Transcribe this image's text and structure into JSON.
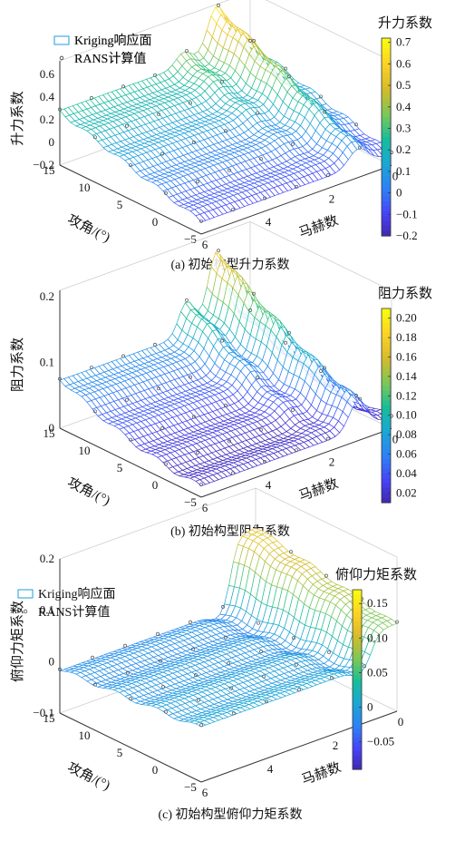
{
  "legend": {
    "surface": "Kriging响应面",
    "points": "RANS计算值"
  },
  "axis_labels": {
    "x": "马赫数",
    "y": "攻角/(°)"
  },
  "colormap": [
    "#3e26a8",
    "#4743f8",
    "#2d80f5",
    "#1aa6d6",
    "#17bd9b",
    "#7ac857",
    "#d4bb2b",
    "#fbd126",
    "#f9fb0e"
  ],
  "chart_data": [
    {
      "type": "surface",
      "title": "(a) 初始构型升力系数",
      "zlabel": "升力系数",
      "colorbar_title": "升力系数",
      "x_ticks": [
        "6",
        "4",
        "2",
        "0"
      ],
      "y_ticks": [
        "15",
        "10",
        "5",
        "0",
        "−5"
      ],
      "z_ticks": [
        "0.6",
        "0.4",
        "0.2",
        "0",
        "−0.2"
      ],
      "colorbar_ticks": [
        "0.7",
        "0.6",
        "0.5",
        "0.4",
        "0.3",
        "0.2",
        "0.1",
        "0",
        "−0.1",
        "−0.2"
      ],
      "xlim": [
        0,
        6
      ],
      "ylim": [
        -5,
        15
      ],
      "zlim": [
        -0.2,
        0.72
      ],
      "clim": [
        -0.2,
        0.72
      ]
    },
    {
      "type": "surface",
      "title": "(b) 初始构型阻力系数",
      "zlabel": "阻力系数",
      "colorbar_title": "阻力系数",
      "x_ticks": [
        "6",
        "4",
        "2",
        "0"
      ],
      "y_ticks": [
        "15",
        "10",
        "5",
        "0",
        "−5"
      ],
      "z_ticks": [
        "0.2",
        "0.1",
        "0"
      ],
      "colorbar_ticks": [
        "0.20",
        "0.18",
        "0.16",
        "0.14",
        "0.12",
        "0.10",
        "0.08",
        "0.06",
        "0.04",
        "0.02"
      ],
      "xlim": [
        0,
        6
      ],
      "ylim": [
        -5,
        15
      ],
      "zlim": [
        0,
        0.21
      ],
      "clim": [
        0.01,
        0.21
      ]
    },
    {
      "type": "surface",
      "title": "(c) 初始构型俯仰力矩系数",
      "zlabel": "俯仰力矩系数",
      "colorbar_title": "俯仰力矩系数",
      "x_ticks": [
        "6",
        "4",
        "2",
        "0"
      ],
      "y_ticks": [
        "15",
        "10",
        "5",
        "0",
        "−5"
      ],
      "z_ticks": [
        "0.2",
        "0.1",
        "0",
        "−0.1"
      ],
      "colorbar_ticks": [
        "0.15",
        "0.10",
        "0.05",
        "0",
        "−0.05"
      ],
      "xlim": [
        0,
        6
      ],
      "ylim": [
        -5,
        15
      ],
      "zlim": [
        -0.1,
        0.2
      ],
      "clim": [
        -0.09,
        0.17
      ]
    }
  ]
}
